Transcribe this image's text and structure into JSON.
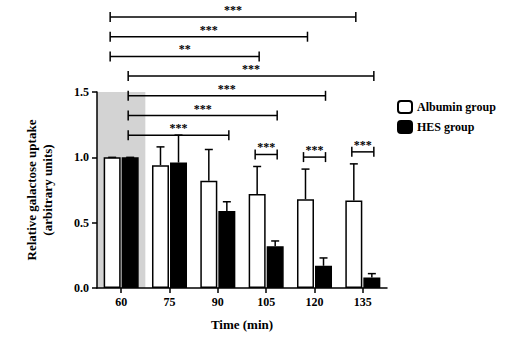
{
  "chart_data": {
    "type": "bar",
    "x_label": "Time (min)",
    "y_label": "Relative galactose uptake\n(arbitrary units)",
    "categories": [
      "60",
      "75",
      "90",
      "105",
      "120",
      "135"
    ],
    "series": [
      {
        "name": "Albumin group",
        "color": "#ffffff",
        "values": [
          1.0,
          0.94,
          0.82,
          0.72,
          0.68,
          0.67
        ],
        "errors": [
          0,
          0.14,
          0.24,
          0.21,
          0.23,
          0.28
        ]
      },
      {
        "name": "HES group",
        "color": "#000000",
        "values": [
          1.0,
          0.96,
          0.59,
          0.32,
          0.17,
          0.08
        ],
        "errors": [
          0,
          0.21,
          0.07,
          0.04,
          0.06,
          0.03
        ]
      }
    ],
    "ylim": [
      0,
      1.5
    ],
    "yticks": [
      {
        "value": 0,
        "label": "0.0"
      },
      {
        "value": 0.5,
        "label": "0.5"
      },
      {
        "value": 1,
        "label": "1.0"
      },
      {
        "value": 1.5,
        "label": "1.5"
      }
    ],
    "grid": false,
    "legend": "right",
    "annotations": [
      {
        "text": "***",
        "from": [
          "Albumin group",
          "60"
        ],
        "to": [
          "Albumin group",
          "135"
        ]
      },
      {
        "text": "***",
        "from": [
          "Albumin group",
          "60"
        ],
        "to": [
          "Albumin group",
          "120"
        ]
      },
      {
        "text": "**",
        "from": [
          "Albumin group",
          "60"
        ],
        "to": [
          "Albumin group",
          "105"
        ]
      },
      {
        "text": "***",
        "from": [
          "HES group",
          "60"
        ],
        "to": [
          "HES group",
          "135"
        ]
      },
      {
        "text": "***",
        "from": [
          "HES group",
          "60"
        ],
        "to": [
          "HES group",
          "120"
        ]
      },
      {
        "text": "***",
        "from": [
          "HES group",
          "60"
        ],
        "to": [
          "HES group",
          "105"
        ]
      },
      {
        "text": "***",
        "from": [
          "HES group",
          "60"
        ],
        "to": [
          "HES group",
          "90"
        ]
      },
      {
        "text": "***",
        "from": [
          "Albumin group",
          "105"
        ],
        "to": [
          "HES group",
          "105"
        ]
      },
      {
        "text": "***",
        "from": [
          "Albumin group",
          "120"
        ],
        "to": [
          "HES group",
          "120"
        ]
      },
      {
        "text": "***",
        "from": [
          "Albumin group",
          "135"
        ],
        "to": [
          "HES group",
          "135"
        ]
      }
    ]
  }
}
